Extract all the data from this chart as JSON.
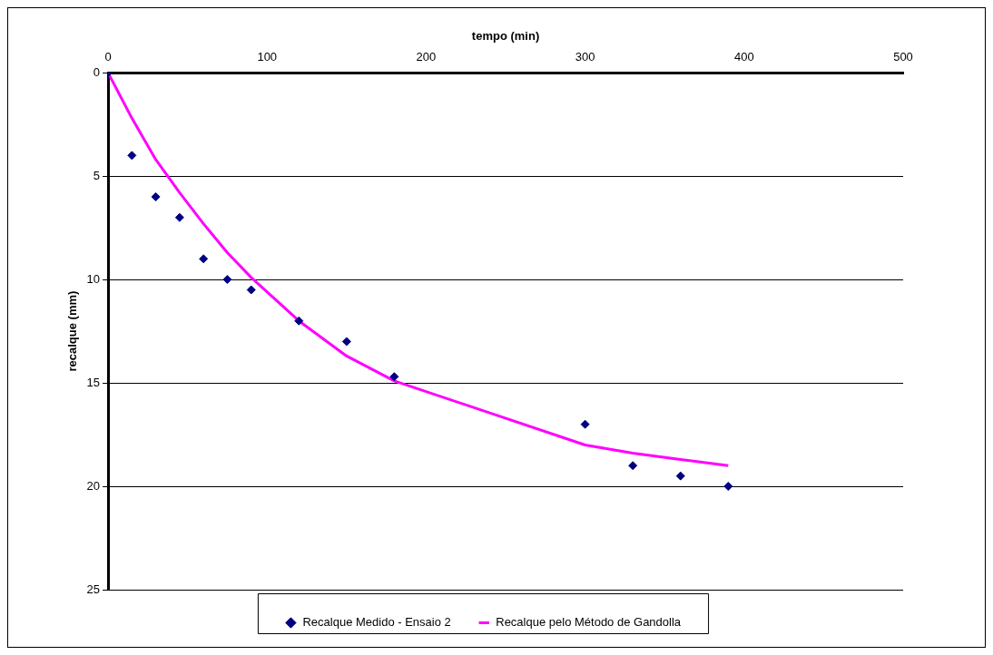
{
  "chart_data": {
    "type": "scatter",
    "xlabel": "tempo (min)",
    "ylabel": "recalque (mm)",
    "xlim": [
      0,
      500
    ],
    "xticks": [
      0,
      100,
      200,
      300,
      400,
      500
    ],
    "ylim": [
      25,
      0
    ],
    "yticks": [
      0,
      5,
      10,
      15,
      20,
      25
    ],
    "grid": "y",
    "legend": "bottom",
    "series": [
      {
        "name": "Recalque Medido - Ensaio 2",
        "type": "scatter",
        "marker": "diamond",
        "color": "#000080",
        "x": [
          0,
          15,
          30,
          45,
          60,
          75,
          90,
          120,
          150,
          180,
          300,
          330,
          360,
          390
        ],
        "values": [
          0,
          4,
          6,
          7,
          9,
          10,
          10.5,
          12,
          13,
          14.7,
          17,
          19,
          19.5,
          20
        ]
      },
      {
        "name": "Recalque pelo Método de Gandolla",
        "type": "line",
        "marker": "none",
        "line_style": "solid",
        "color": "#ff00ff",
        "x": [
          0,
          15,
          30,
          45,
          60,
          75,
          90,
          120,
          150,
          180,
          300,
          330,
          360,
          390
        ],
        "values": [
          0,
          2.2,
          4.2,
          5.8,
          7.3,
          8.7,
          9.9,
          12,
          13.7,
          14.9,
          18,
          18.4,
          18.7,
          19
        ]
      }
    ]
  }
}
